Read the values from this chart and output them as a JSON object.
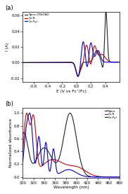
{
  "panel_a": {
    "title": "(a)",
    "xlabel": "E (V vs Fc⁺/Fc)",
    "ylabel": "I (A)",
    "xlim": [
      -0.75,
      0.6
    ],
    "ylim": [
      -0.025,
      0.065
    ],
    "yticks": [
      -0.02,
      0.0,
      0.02,
      0.04,
      0.06
    ],
    "ytick_labels": [
      "-0.02",
      "0.00",
      "0.02",
      "0.04",
      "0.06"
    ],
    "xticks": [
      -0.6,
      -0.4,
      -0.2,
      0.0,
      0.2,
      0.4
    ],
    "legend": [
      "Spiro-OMeTAD",
      "Cz-N",
      "Cz-Pyr"
    ],
    "colors": [
      "#222222",
      "#cc0000",
      "#0000cc"
    ]
  },
  "panel_b": {
    "title": "(b)",
    "xlabel": "Wavelength (nm)",
    "ylabel": "Normalized absorbance",
    "xlim": [
      300,
      480
    ],
    "ylim": [
      -0.02,
      1.08
    ],
    "yticks": [
      0.0,
      0.2,
      0.4,
      0.6,
      0.8,
      1.0
    ],
    "xticks": [
      300,
      320,
      340,
      360,
      380,
      400,
      420,
      440,
      460,
      480
    ],
    "legend": [
      "Spiro",
      "Cz-N",
      "Cz-Pyr"
    ],
    "colors": [
      "#222222",
      "#cc0000",
      "#0000cc"
    ]
  }
}
